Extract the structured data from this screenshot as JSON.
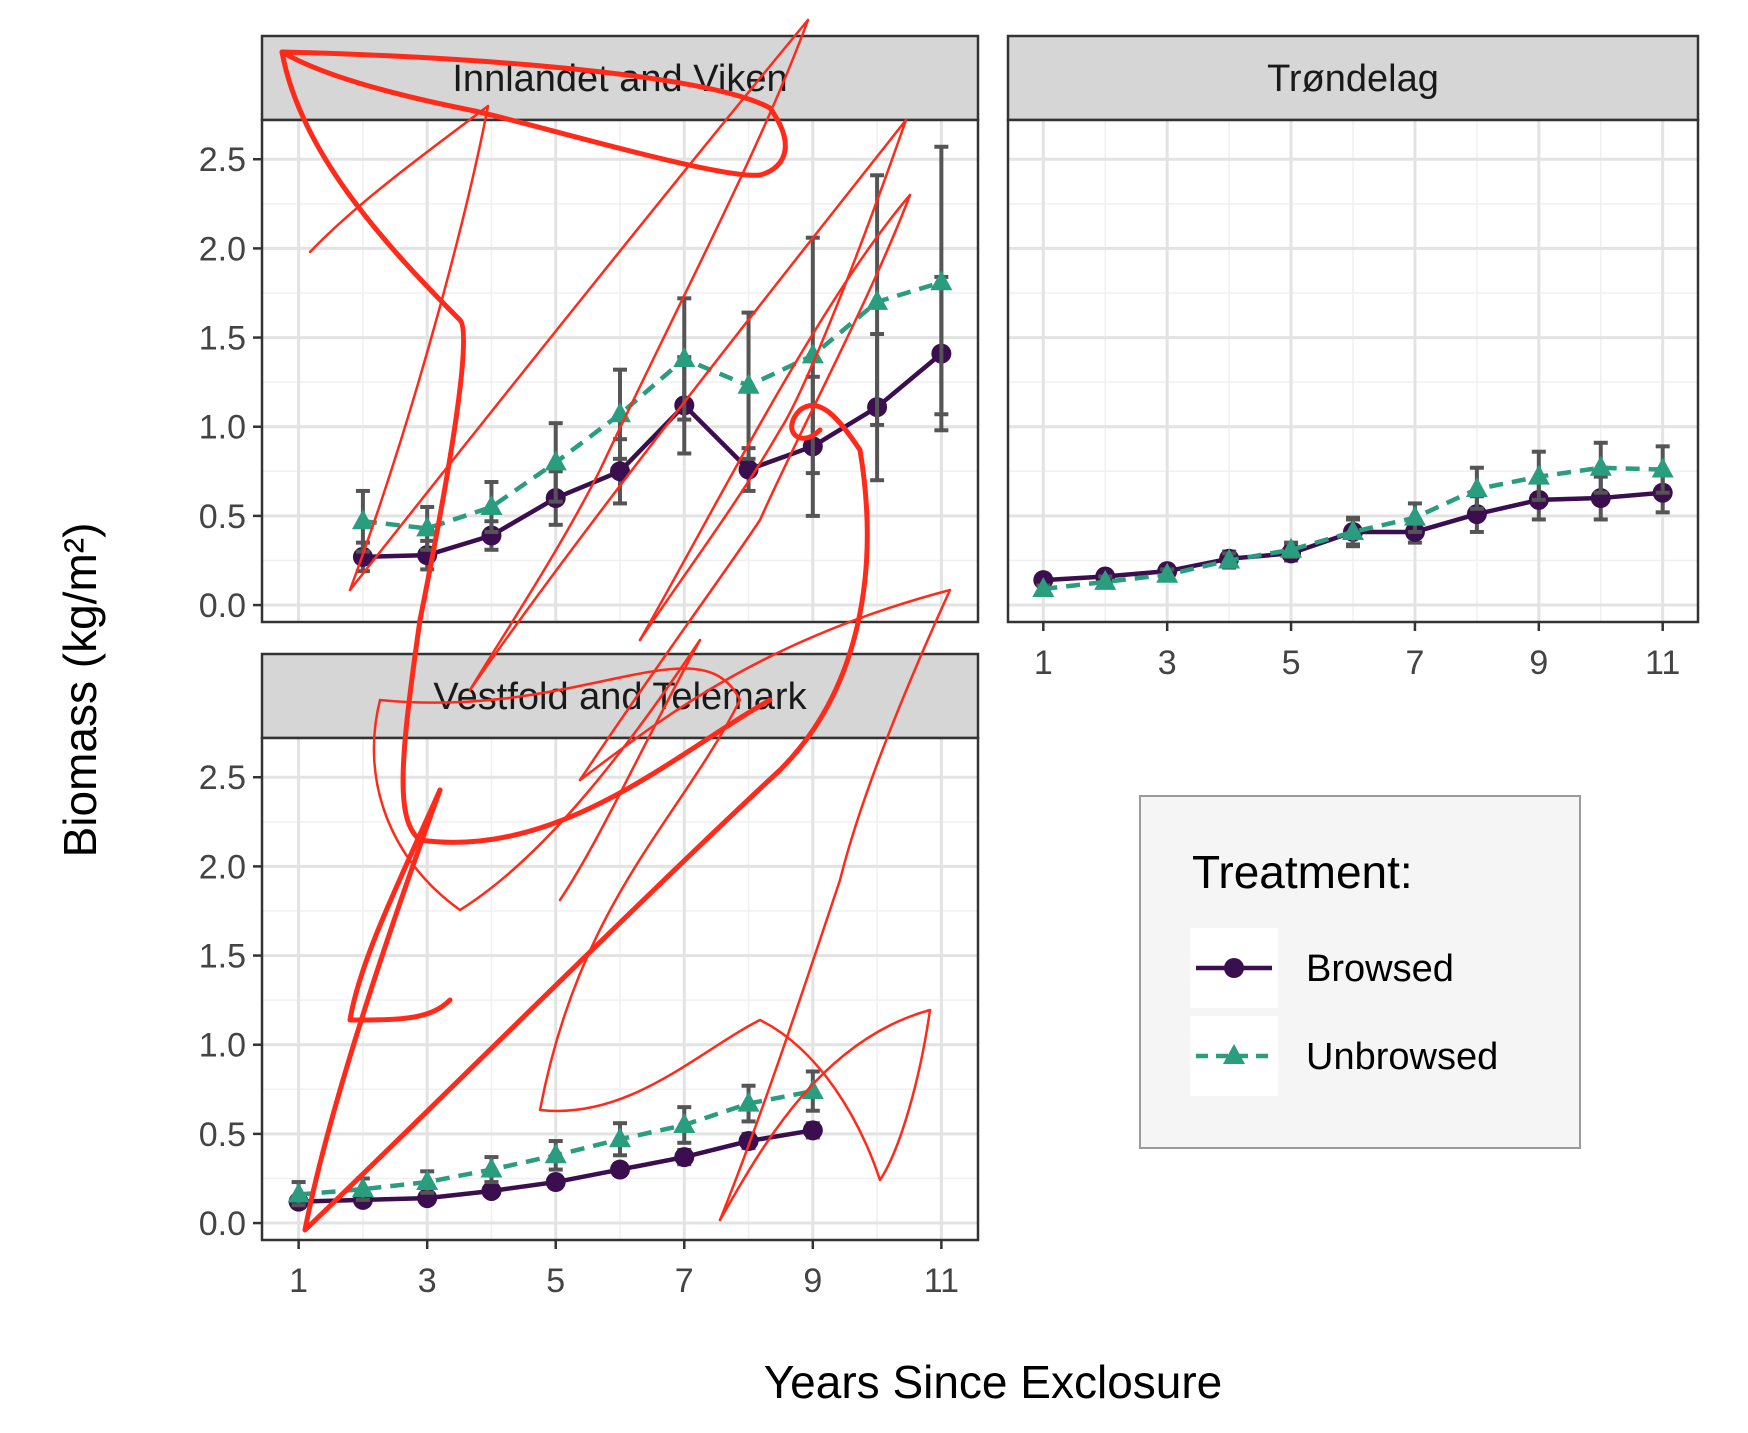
{
  "chart_data": {
    "type": "line",
    "xlabel": "Years Since Exclosure",
    "ylabel": "Biomass  (kg/m²)",
    "ylim": [
      0,
      2.65
    ],
    "yticks": [
      "0.0",
      "0.5",
      "1.0",
      "1.5",
      "2.0",
      "2.5"
    ],
    "xticks": [
      "1",
      "3",
      "5",
      "7",
      "9",
      "11"
    ],
    "grid": true,
    "legend": {
      "title": "Treatment:",
      "position": "right",
      "entries": [
        "Browsed",
        "Unbrowsed"
      ]
    },
    "colors": {
      "Browsed": "#3b0f4f",
      "Unbrowsed": "#2a9d7f",
      "errorbar": "#555555",
      "annotation": "#ff2a1a"
    },
    "panels": [
      {
        "name": "Innlandet and Viken",
        "series": [
          {
            "name": "Browsed",
            "x": [
              2,
              3,
              4,
              5,
              6,
              7,
              8,
              9,
              10,
              11
            ],
            "y": [
              0.27,
              0.28,
              0.39,
              0.6,
              0.75,
              1.12,
              0.76,
              0.89,
              1.11,
              1.41
            ],
            "err_low": [
              0.19,
              0.2,
              0.31,
              0.45,
              0.57,
              0.85,
              0.64,
              0.5,
              0.7,
              0.98
            ],
            "err_high": [
              0.35,
              0.36,
              0.47,
              0.75,
              0.93,
              1.39,
              0.88,
              1.28,
              1.52,
              1.84
            ]
          },
          {
            "name": "Unbrowsed",
            "x": [
              2,
              3,
              4,
              5,
              6,
              7,
              8,
              9,
              10,
              11
            ],
            "y": [
              0.47,
              0.43,
              0.55,
              0.8,
              1.07,
              1.38,
              1.23,
              1.4,
              1.7,
              1.81
            ],
            "err_low": [
              0.3,
              0.31,
              0.41,
              0.58,
              0.82,
              1.04,
              0.82,
              0.74,
              1.01,
              1.07
            ],
            "err_high": [
              0.64,
              0.55,
              0.69,
              1.02,
              1.32,
              1.72,
              1.64,
              2.06,
              2.41,
              2.57
            ]
          }
        ]
      },
      {
        "name": "Trøndelag",
        "series": [
          {
            "name": "Browsed",
            "x": [
              1,
              2,
              3,
              4,
              5,
              6,
              7,
              8,
              9,
              10,
              11
            ],
            "y": [
              0.14,
              0.16,
              0.19,
              0.26,
              0.29,
              0.41,
              0.41,
              0.51,
              0.59,
              0.6,
              0.63
            ],
            "err_low": [
              0.11,
              0.13,
              0.16,
              0.22,
              0.25,
              0.33,
              0.35,
              0.41,
              0.48,
              0.48,
              0.52
            ],
            "err_high": [
              0.17,
              0.19,
              0.22,
              0.3,
              0.33,
              0.49,
              0.47,
              0.61,
              0.7,
              0.72,
              0.74
            ]
          },
          {
            "name": "Unbrowsed",
            "x": [
              1,
              2,
              3,
              4,
              5,
              6,
              7,
              8,
              9,
              10,
              11
            ],
            "y": [
              0.09,
              0.13,
              0.17,
              0.25,
              0.31,
              0.41,
              0.49,
              0.65,
              0.72,
              0.77,
              0.76
            ],
            "err_low": [
              0.07,
              0.1,
              0.14,
              0.21,
              0.27,
              0.34,
              0.41,
              0.54,
              0.59,
              0.63,
              0.63
            ],
            "err_high": [
              0.11,
              0.16,
              0.2,
              0.29,
              0.35,
              0.48,
              0.57,
              0.77,
              0.86,
              0.91,
              0.89
            ]
          }
        ]
      },
      {
        "name": "Vestfold and Telemark",
        "series": [
          {
            "name": "Browsed",
            "x": [
              1,
              2,
              3,
              4,
              5,
              6,
              7,
              8,
              9
            ],
            "y": [
              0.12,
              0.13,
              0.14,
              0.18,
              0.23,
              0.3,
              0.37,
              0.46,
              0.52
            ],
            "err_low": [
              0.1,
              0.11,
              0.12,
              0.16,
              0.2,
              0.27,
              0.33,
              0.42,
              0.48
            ],
            "err_high": [
              0.14,
              0.15,
              0.16,
              0.2,
              0.26,
              0.33,
              0.41,
              0.5,
              0.56
            ]
          },
          {
            "name": "Unbrowsed",
            "x": [
              1,
              2,
              3,
              4,
              5,
              6,
              7,
              8,
              9
            ],
            "y": [
              0.16,
              0.19,
              0.23,
              0.3,
              0.38,
              0.47,
              0.55,
              0.67,
              0.74
            ],
            "err_low": [
              0.1,
              0.13,
              0.17,
              0.23,
              0.3,
              0.38,
              0.45,
              0.57,
              0.63
            ],
            "err_high": [
              0.23,
              0.25,
              0.29,
              0.37,
              0.46,
              0.56,
              0.65,
              0.77,
              0.85
            ]
          }
        ]
      }
    ]
  }
}
